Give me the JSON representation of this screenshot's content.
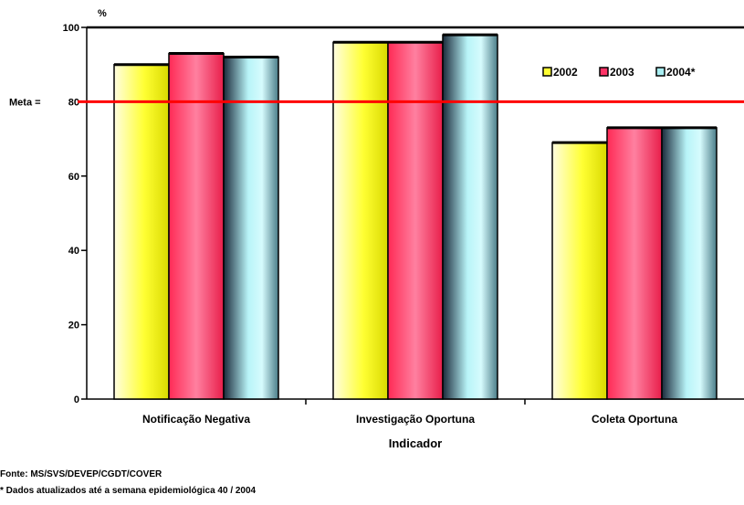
{
  "chart_data": {
    "type": "bar",
    "ylabel": "%",
    "xlabel": "Indicador",
    "categories": [
      "Notificação Negativa",
      "Investigação Oportuna",
      "Coleta Oportuna"
    ],
    "series": [
      {
        "name": "2002",
        "values": [
          90,
          96,
          69
        ],
        "color": "#ffff33"
      },
      {
        "name": "2003",
        "values": [
          93,
          96,
          73
        ],
        "color": "#ff6680"
      },
      {
        "name": "2004*",
        "values": [
          92,
          98,
          73
        ],
        "color": "#a8eef2"
      }
    ],
    "ylim": [
      0,
      100
    ],
    "yticks": [
      0,
      20,
      40,
      60,
      80,
      100
    ],
    "reference_line": {
      "label": "Meta =",
      "value": 80,
      "color": "#ff0000"
    },
    "legend_position": "top-right"
  },
  "footer": {
    "source": "Fonte: MS/SVS/DEVEP/CGDT/COVER",
    "note": "* Dados atualizados até a semana epidemiológica 40 / 2004"
  }
}
